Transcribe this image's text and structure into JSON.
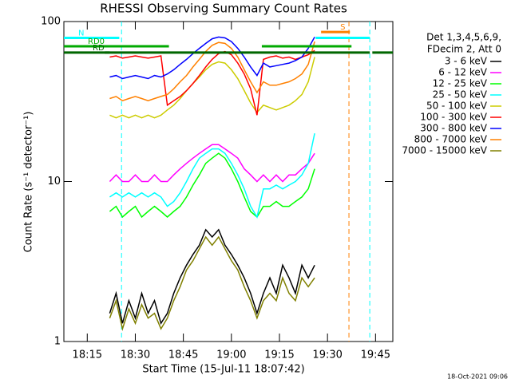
{
  "chart_data": {
    "type": "line",
    "title": "RHESSI Observing Summary Count Rates",
    "xlabel": "Start Time (15-Jul-11 18:07:42)",
    "ylabel": "Count Rate (s⁻¹ detector⁻¹)",
    "log_y": true,
    "ylim": [
      1,
      100
    ],
    "yticks": [
      1,
      10,
      100
    ],
    "xlim": [
      1087.7,
      1190.4
    ],
    "xticks": [
      {
        "value": 1095,
        "label": "18:15"
      },
      {
        "value": 1110,
        "label": "18:30"
      },
      {
        "value": 1125,
        "label": "18:45"
      },
      {
        "value": 1140,
        "label": "19:00"
      },
      {
        "value": 1155,
        "label": "19:15"
      },
      {
        "value": 1170,
        "label": "19:30"
      },
      {
        "value": 1185,
        "label": "19:45"
      }
    ],
    "legend_title": [
      "Det 1,3,4,5,6,9,",
      "FDecim 2, Att 0"
    ],
    "legend_position": "right",
    "footer": "18-Oct-2021 09:06",
    "x": [
      1102,
      1104,
      1106,
      1108,
      1110,
      1112,
      1114,
      1116,
      1118,
      1120,
      1122,
      1124,
      1126,
      1128,
      1130,
      1132,
      1134,
      1136,
      1138,
      1140,
      1142,
      1144,
      1146,
      1148,
      1150,
      1152,
      1154,
      1156,
      1158,
      1160,
      1162,
      1164,
      1166
    ],
    "series": [
      {
        "name": "3 - 6 keV",
        "color": "#000000",
        "values": [
          1.5,
          2,
          1.3,
          1.8,
          1.4,
          2,
          1.5,
          1.8,
          1.3,
          1.5,
          2,
          2.5,
          3,
          3.5,
          4,
          5,
          4.5,
          5,
          4,
          3.5,
          3,
          2.5,
          2,
          1.5,
          2,
          2.5,
          2,
          3,
          2.5,
          2,
          3,
          2.5,
          3
        ]
      },
      {
        "name": "6 - 12 keV",
        "color": "#ff00ff",
        "values": [
          10,
          11,
          10,
          10,
          11,
          10,
          10,
          11,
          10,
          10,
          11,
          12,
          13,
          14,
          15,
          16,
          17,
          17,
          16,
          15,
          14,
          12,
          11,
          10,
          11,
          10,
          11,
          10,
          11,
          11,
          12,
          13,
          15
        ]
      },
      {
        "name": "12 - 25 keV",
        "color": "#00ff00",
        "values": [
          6.5,
          7,
          6,
          6.5,
          7,
          6,
          6.5,
          7,
          6.5,
          6,
          6.5,
          7,
          8,
          9.5,
          11,
          13,
          14,
          15,
          14,
          12,
          10,
          8,
          6.5,
          6,
          7,
          7,
          7.5,
          7,
          7,
          7.5,
          8,
          9,
          12
        ]
      },
      {
        "name": "25 - 50 keV",
        "color": "#00ffff",
        "values": [
          8,
          8.5,
          8,
          8.5,
          8,
          8.5,
          8,
          8.5,
          8,
          7,
          7.5,
          8.5,
          10,
          12,
          14,
          15,
          16,
          16,
          15,
          13,
          11,
          9,
          7,
          6,
          9,
          9,
          9.5,
          9,
          9.5,
          10,
          11,
          13,
          20
        ]
      },
      {
        "name": "50 - 100 keV",
        "color": "#cccc00",
        "values": [
          26,
          25,
          26,
          25,
          26,
          25,
          26,
          25,
          26,
          28,
          30,
          33,
          37,
          41,
          45,
          50,
          54,
          56,
          55,
          50,
          44,
          37,
          31,
          27,
          30,
          29,
          28,
          29,
          30,
          32,
          35,
          42,
          60
        ]
      },
      {
        "name": "100 - 300 keV",
        "color": "#ff0000",
        "values": [
          60,
          61,
          59,
          60,
          61,
          60,
          59,
          60,
          61,
          30,
          32,
          34,
          37,
          41,
          46,
          52,
          58,
          63,
          65,
          62,
          55,
          47,
          38,
          26,
          58,
          60,
          61,
          59,
          60,
          58,
          60,
          62,
          66
        ]
      },
      {
        "name": "300 - 800 keV",
        "color": "#0000ff",
        "values": [
          45,
          46,
          44,
          45,
          46,
          45,
          44,
          46,
          45,
          47,
          50,
          54,
          58,
          63,
          68,
          73,
          78,
          80,
          79,
          75,
          68,
          60,
          52,
          46,
          55,
          52,
          53,
          54,
          55,
          57,
          60,
          68,
          80
        ]
      },
      {
        "name": "800 - 7000 keV",
        "color": "#ff8000",
        "values": [
          33,
          34,
          32,
          33,
          34,
          33,
          32,
          33,
          34,
          35,
          38,
          42,
          46,
          52,
          58,
          65,
          71,
          74,
          73,
          68,
          60,
          50,
          42,
          36,
          42,
          40,
          40,
          41,
          42,
          44,
          47,
          54,
          75
        ]
      },
      {
        "name": "7000 - 15000 keV",
        "color": "#808000",
        "values": [
          1.4,
          1.8,
          1.2,
          1.6,
          1.3,
          1.7,
          1.4,
          1.5,
          1.2,
          1.4,
          1.8,
          2.2,
          2.8,
          3.2,
          3.8,
          4.5,
          4,
          4.5,
          3.8,
          3.2,
          2.8,
          2.2,
          1.8,
          1.4,
          1.8,
          2,
          1.8,
          2.5,
          2,
          1.8,
          2.5,
          2.2,
          2.5
        ]
      }
    ],
    "flags": [
      {
        "label": "N",
        "color": "#00ffff",
        "y": 79,
        "segments": [
          [
            1087.7,
            1105
          ],
          [
            1166.3,
            1183.2
          ]
        ]
      },
      {
        "label": "S",
        "color": "#ff8000",
        "y": 86,
        "segments": [
          [
            1168,
            1177
          ]
        ]
      },
      {
        "label": "RD0",
        "color": "#00aa00",
        "y": 70,
        "segments": [
          [
            1087.7,
            1120.5
          ],
          [
            1149.5,
            1177.5
          ]
        ]
      },
      {
        "label": "RD",
        "color": "#006600",
        "y": 64,
        "segments": [
          [
            1087.7,
            1102
          ],
          [
            1100.5,
            1183.2
          ],
          [
            1184,
            1190.4
          ]
        ]
      }
    ],
    "markers": [
      {
        "x": 1105.7,
        "color": "#00ffff"
      },
      {
        "x": 1176.7,
        "color": "#ff8000"
      },
      {
        "x": 1183.2,
        "color": "#00ffff"
      }
    ]
  }
}
